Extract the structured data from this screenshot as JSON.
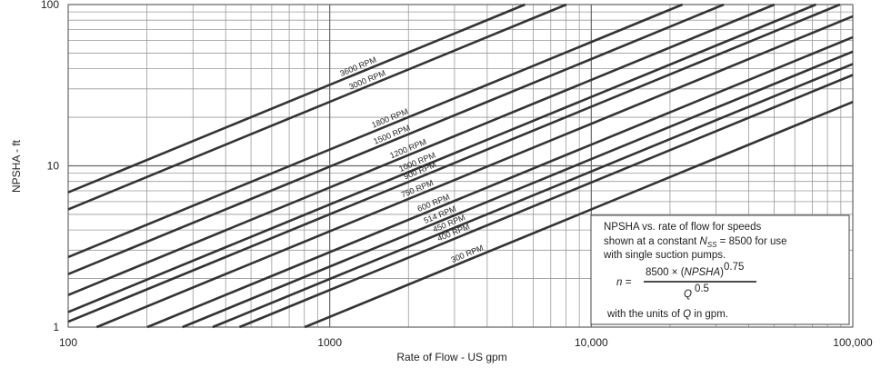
{
  "chart_data": {
    "type": "line",
    "x_label": "Rate of Flow - US gpm",
    "y_label": "NPSHA - ft",
    "log_x": true,
    "log_y": true,
    "grid": true,
    "xlim": [
      100,
      100000
    ],
    "ylim": [
      1,
      100
    ],
    "xticks": [
      100,
      1000,
      {
        "value": 10000,
        "label": "10,000"
      },
      {
        "value": 100000,
        "label": "100,000"
      }
    ],
    "yticks": [
      1,
      10,
      100
    ],
    "color": "#333333",
    "series": [
      {
        "name": "3600 RPM",
        "x": [
          100,
          5577
        ],
        "values": [
          6.85,
          100
        ]
      },
      {
        "name": "3000 RPM",
        "x": [
          100,
          8030
        ],
        "values": [
          5.37,
          100
        ]
      },
      {
        "name": "1800 RPM",
        "x": [
          100,
          22306
        ],
        "values": [
          2.72,
          100
        ]
      },
      {
        "name": "1500 RPM",
        "x": [
          100,
          32112
        ],
        "values": [
          2.13,
          100
        ]
      },
      {
        "name": "1200 RPM",
        "x": [
          100,
          50165
        ],
        "values": [
          1.58,
          100
        ]
      },
      {
        "name": "1000 RPM",
        "x": [
          100,
          72245
        ],
        "values": [
          1.24,
          100
        ]
      },
      {
        "name": "900 RPM",
        "x": [
          100,
          89230
        ],
        "values": [
          1.08,
          100
        ]
      },
      {
        "name": "750 RPM",
        "x": [
          128.5,
          100000
        ],
        "values": [
          1,
          84.6
        ]
      },
      {
        "name": "600 RPM",
        "x": [
          200.7,
          100000
        ],
        "values": [
          1,
          62.8
        ]
      },
      {
        "name": "514 RPM",
        "x": [
          273.4,
          100000
        ],
        "values": [
          1,
          51.1
        ]
      },
      {
        "name": "450 RPM",
        "x": [
          356.7,
          100000
        ],
        "values": [
          1,
          42.8
        ]
      },
      {
        "name": "400 RPM",
        "x": [
          451.6,
          100000
        ],
        "values": [
          1,
          36.6
        ]
      },
      {
        "name": "300 RPM",
        "x": [
          802.6,
          100000
        ],
        "values": [
          1,
          24.9
        ]
      }
    ],
    "annotation": {
      "line1": "NPSHA vs. rate of flow for speeds",
      "line2a": "shown at a constant ",
      "line2b": "N",
      "line2c": "SS",
      "line2d": " = 8500 for use",
      "line3": "with single suction pumps.",
      "formula_lhs": "n =",
      "numerator_a": "8500 × (",
      "numerator_b": "NPSHA",
      "numerator_c": ")",
      "numerator_exp": "0.75",
      "denominator": "Q",
      "denominator_exp": "0.5",
      "footer_a": "with the units of ",
      "footer_b": "Q",
      "footer_c": " in gpm."
    }
  }
}
